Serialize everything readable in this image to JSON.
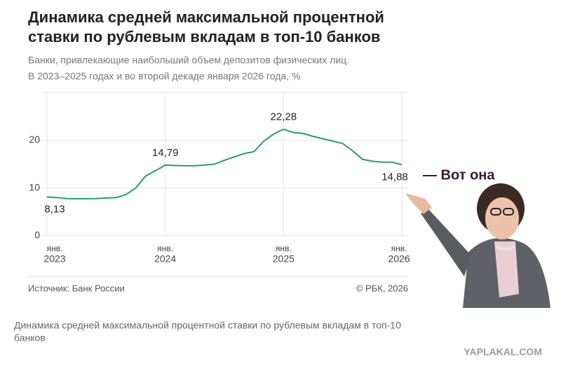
{
  "chart_data": {
    "type": "line",
    "title": [
      "Динамика средней максимальной процентной",
      "ставки по рублевым вкладам в топ-10 банков"
    ],
    "subtitle": [
      "Банки, привлекающие наибольший объем депозитов физических лиц.",
      "В 2023–2025 годах и во второй декаде января 2026 года, %"
    ],
    "x": [
      "2023-01",
      "2023-02",
      "2023-03",
      "2023-04",
      "2023-05",
      "2023-06",
      "2023-07",
      "2023-08",
      "2023-09",
      "2023-10",
      "2023-11",
      "2023-12",
      "2024-01",
      "2024-02",
      "2024-03",
      "2024-04",
      "2024-05",
      "2024-06",
      "2024-07",
      "2024-08",
      "2024-09",
      "2024-10",
      "2024-11",
      "2024-12",
      "2025-01",
      "2025-02",
      "2025-03",
      "2025-04",
      "2025-05",
      "2025-06",
      "2025-07",
      "2025-08",
      "2025-09",
      "2025-10",
      "2025-11",
      "2025-12",
      "2026-01"
    ],
    "series": [
      {
        "color": "#2e9a6c",
        "values": [
          8.13,
          8.0,
          7.8,
          7.75,
          7.75,
          7.8,
          7.9,
          8.0,
          8.6,
          10.0,
          12.5,
          13.6,
          14.79,
          14.7,
          14.65,
          14.65,
          14.8,
          15.0,
          15.8,
          16.5,
          17.2,
          17.6,
          19.8,
          21.3,
          22.28,
          21.6,
          21.4,
          20.8,
          20.3,
          19.8,
          19.3,
          17.8,
          16.0,
          15.6,
          15.4,
          15.4,
          14.88
        ],
        "value_labels": [
          "8,13",
          null,
          null,
          null,
          null,
          null,
          null,
          null,
          null,
          null,
          null,
          null,
          "14,79",
          null,
          null,
          null,
          null,
          null,
          null,
          null,
          null,
          null,
          null,
          null,
          "22,28",
          null,
          null,
          null,
          null,
          null,
          null,
          null,
          null,
          null,
          null,
          null,
          "14,88"
        ]
      }
    ],
    "ylim": [
      0,
      30
    ],
    "yticks": [
      0,
      10,
      20
    ],
    "grid": true,
    "xticks": [
      {
        "value": "2023-01",
        "label": [
          "янв.",
          "2023"
        ]
      },
      {
        "value": "2024-01",
        "label": [
          "янв.",
          "2024"
        ]
      },
      {
        "value": "2025-01",
        "label": [
          "янв.",
          "2025"
        ]
      },
      {
        "value": "2026-01",
        "label": [
          "янв.",
          "2026"
        ]
      }
    ],
    "source": "Источник: Банк России",
    "copyright": "© РБК, 2026"
  },
  "caption": [
    "Динамика средней максимальной процентной ставки по рублевым вкладам в топ-10",
    "банков"
  ],
  "annotation": "— Вот она",
  "watermark": "YAPLAKAL.COM"
}
